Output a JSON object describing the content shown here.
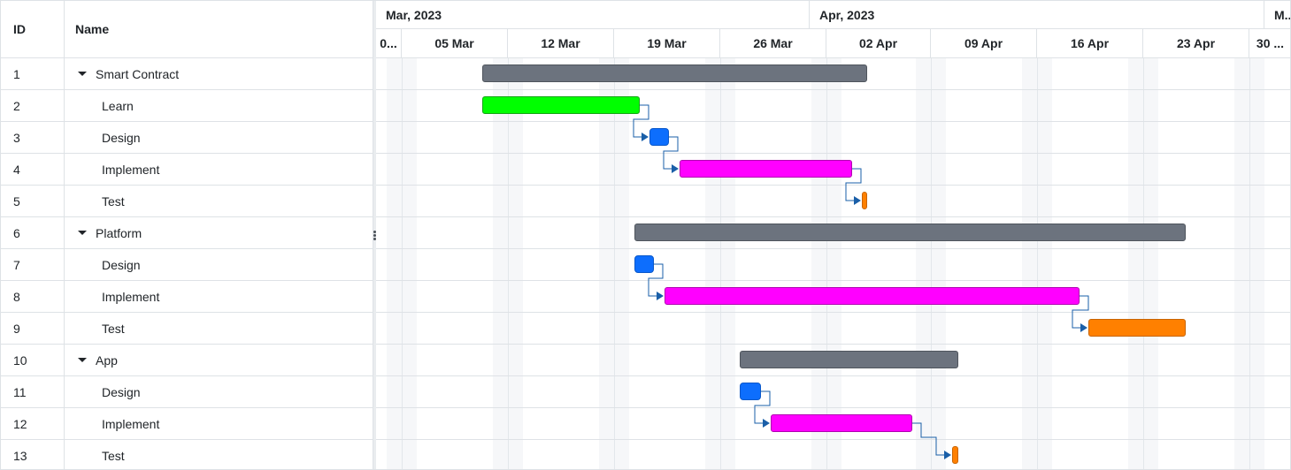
{
  "grid": {
    "headers": {
      "id": "ID",
      "name": "Name"
    },
    "rows": [
      {
        "id": "1",
        "name": "Smart Contract",
        "parent": true
      },
      {
        "id": "2",
        "name": "Learn",
        "parent": false
      },
      {
        "id": "3",
        "name": "Design",
        "parent": false
      },
      {
        "id": "4",
        "name": "Implement",
        "parent": false
      },
      {
        "id": "5",
        "name": "Test",
        "parent": false
      },
      {
        "id": "6",
        "name": "Platform",
        "parent": true
      },
      {
        "id": "7",
        "name": "Design",
        "parent": false
      },
      {
        "id": "8",
        "name": "Implement",
        "parent": false
      },
      {
        "id": "9",
        "name": "Test",
        "parent": false
      },
      {
        "id": "10",
        "name": "App",
        "parent": true
      },
      {
        "id": "11",
        "name": "Design",
        "parent": false
      },
      {
        "id": "12",
        "name": "Implement",
        "parent": false
      },
      {
        "id": "13",
        "name": "Test",
        "parent": false
      }
    ]
  },
  "timeline": {
    "months": [
      "Mar, 2023",
      "Apr, 2023",
      "M..."
    ],
    "weeks": [
      "0...",
      "05 Mar",
      "12 Mar",
      "19 Mar",
      "26 Mar",
      "02 Apr",
      "09 Apr",
      "16 Apr",
      "23 Apr",
      "30 ..."
    ]
  },
  "tasks": [
    {
      "row": 0,
      "type": "parent",
      "color": "#6c737e"
    },
    {
      "row": 1,
      "type": "learn",
      "color": "#00ff00"
    },
    {
      "row": 2,
      "type": "design",
      "color": "#0d6efd"
    },
    {
      "row": 3,
      "type": "impl",
      "color": "#ff00ff"
    },
    {
      "row": 4,
      "type": "test",
      "color": "#ff8000"
    },
    {
      "row": 5,
      "type": "parent",
      "color": "#6c737e"
    },
    {
      "row": 6,
      "type": "design",
      "color": "#0d6efd"
    },
    {
      "row": 7,
      "type": "impl",
      "color": "#ff00ff"
    },
    {
      "row": 8,
      "type": "test",
      "color": "#ff8000"
    },
    {
      "row": 9,
      "type": "parent",
      "color": "#6c737e"
    },
    {
      "row": 10,
      "type": "design",
      "color": "#0d6efd"
    },
    {
      "row": 11,
      "type": "impl",
      "color": "#ff00ff"
    },
    {
      "row": 12,
      "type": "test",
      "color": "#ff8000"
    }
  ],
  "links": [
    {
      "from": 1,
      "to": 2
    },
    {
      "from": 2,
      "to": 3
    },
    {
      "from": 3,
      "to": 4
    },
    {
      "from": 6,
      "to": 7
    },
    {
      "from": 7,
      "to": 8
    },
    {
      "from": 10,
      "to": 11
    },
    {
      "from": 11,
      "to": 12
    }
  ],
  "colors": {
    "link": "#1a5fa8",
    "weekend": "#f6f7f9",
    "border": "#dee2e6"
  }
}
